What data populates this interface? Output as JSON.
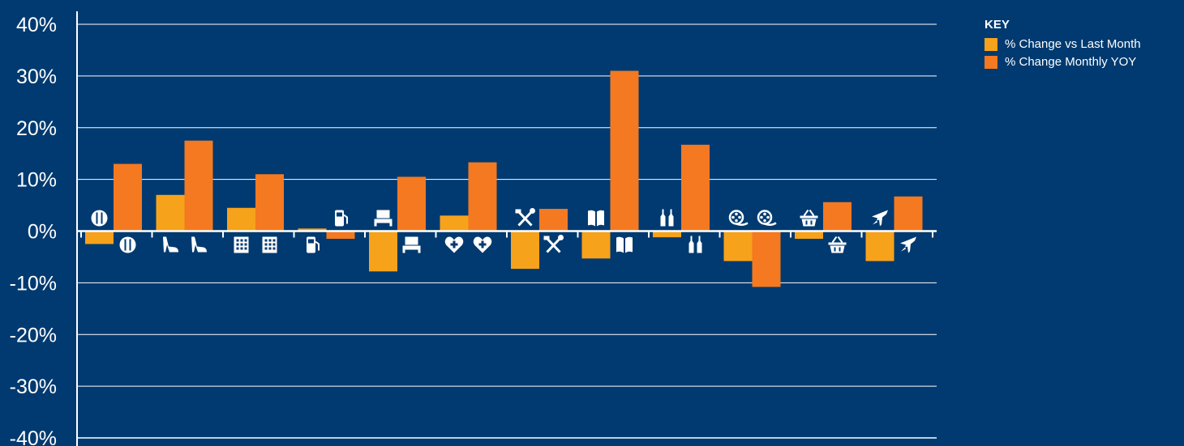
{
  "chart_data": {
    "type": "bar",
    "categories": [
      "restaurants",
      "shoes",
      "department-stores",
      "fuel",
      "furniture",
      "health",
      "hardware",
      "books",
      "alcohol",
      "entertainment",
      "groceries",
      "travel"
    ],
    "category_icons": [
      "fork-knife-icon",
      "high-heel-icon",
      "building-icon",
      "fuel-pump-icon",
      "sofa-icon",
      "heart-cross-icon",
      "hammer-wrench-icon",
      "book-icon",
      "bottles-icon",
      "film-reel-icon",
      "basket-icon",
      "airplane-icon"
    ],
    "series": [
      {
        "name": "% Change vs Last Month",
        "color": "#f7a21b",
        "values": [
          -2.5,
          7,
          4.5,
          0.5,
          -7.8,
          3,
          -7.3,
          -5.3,
          -1.2,
          -5.8,
          -1.5,
          -5.8
        ]
      },
      {
        "name": "% Change Monthly YOY",
        "color": "#f47920",
        "values": [
          13,
          17.5,
          11,
          -1.5,
          10.5,
          13.3,
          4.3,
          31,
          16.7,
          -10.8,
          5.6,
          6.7
        ]
      }
    ],
    "ylim": [
      -40,
      40
    ],
    "yticks": [
      40,
      30,
      20,
      10,
      0,
      -10,
      -20,
      -30,
      -40
    ],
    "ytick_labels": [
      "40%",
      "30%",
      "20%",
      "10%",
      "0%",
      "-10%",
      "-20%",
      "-30%",
      "-40%"
    ],
    "grid": true,
    "legend_title": "KEY",
    "legend_position": "top-right"
  }
}
